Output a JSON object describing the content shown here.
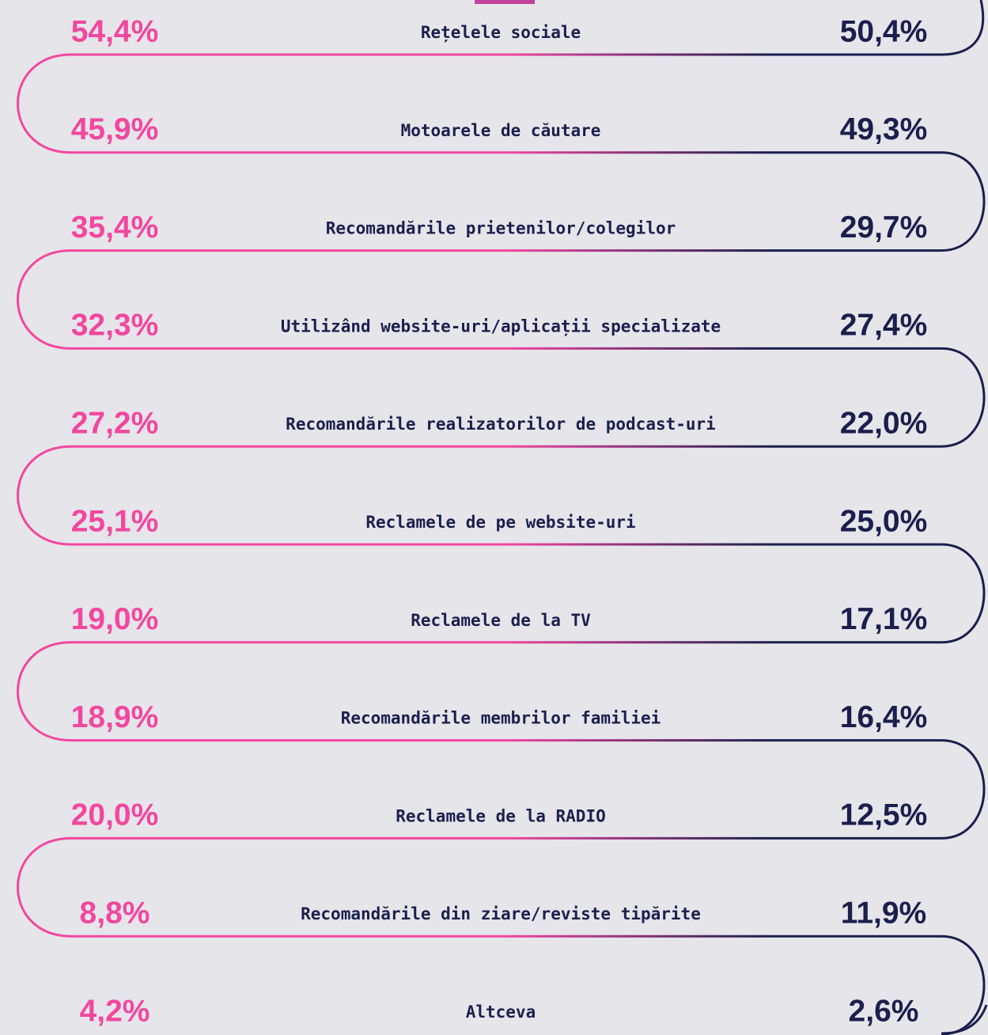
{
  "rows": [
    {
      "left": "54,4%",
      "label": "Rețelele sociale",
      "right": "50,4%"
    },
    {
      "left": "45,9%",
      "label": "Motoarele de căutare",
      "right": "49,3%"
    },
    {
      "left": "35,4%",
      "label": "Recomandările prietenilor/colegilor",
      "right": "29,7%"
    },
    {
      "left": "32,3%",
      "label": "Utilizând website-uri/aplicații specializate",
      "right": "27,4%"
    },
    {
      "left": "27,2%",
      "label": "Recomandările realizatorilor de podcast-uri",
      "right": "22,0%"
    },
    {
      "left": "25,1%",
      "label": "Reclamele de pe website-uri",
      "right": "25,0%"
    },
    {
      "left": "19,0%",
      "label": "Reclamele de la TV",
      "right": "17,1%"
    },
    {
      "left": "18,9%",
      "label": "Recomandările membrilor familiei",
      "right": "16,4%"
    },
    {
      "left": "20,0%",
      "label": "Reclamele de la RADIO",
      "right": "12,5%"
    },
    {
      "left": "8,8%",
      "label": "Recomandările din ziare/reviste tipărite",
      "right": "11,9%"
    },
    {
      "left": "4,2%",
      "label": "Altceva",
      "right": "2,6%"
    }
  ]
}
